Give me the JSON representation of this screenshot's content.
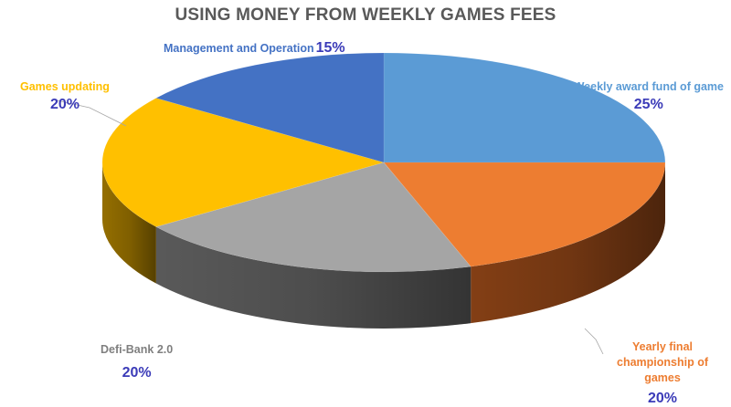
{
  "chart_data": {
    "type": "pie",
    "title": "USING MONEY FROM WEEKLY GAMES FEES",
    "slices": [
      {
        "label": "Weekly award fund of game",
        "value": 25,
        "display": "25%",
        "color": "#5b9bd5",
        "side": "#2e5f8e"
      },
      {
        "label": "Yearly final championship of games",
        "value": 20,
        "display": "20%",
        "color": "#ed7d31",
        "side": "#8a4216"
      },
      {
        "label": "Defi-Bank 2.0",
        "value": 20,
        "display": "20%",
        "color": "#a5a5a5",
        "side": "#5e5e5e"
      },
      {
        "label": "Games updating",
        "value": 20,
        "display": "20%",
        "color": "#ffc000",
        "side": "#9c7400"
      },
      {
        "label": "Management and Operation",
        "value": 15,
        "display": "15%",
        "color": "#4472c4",
        "side": "#243f75"
      }
    ],
    "legend": "none"
  }
}
